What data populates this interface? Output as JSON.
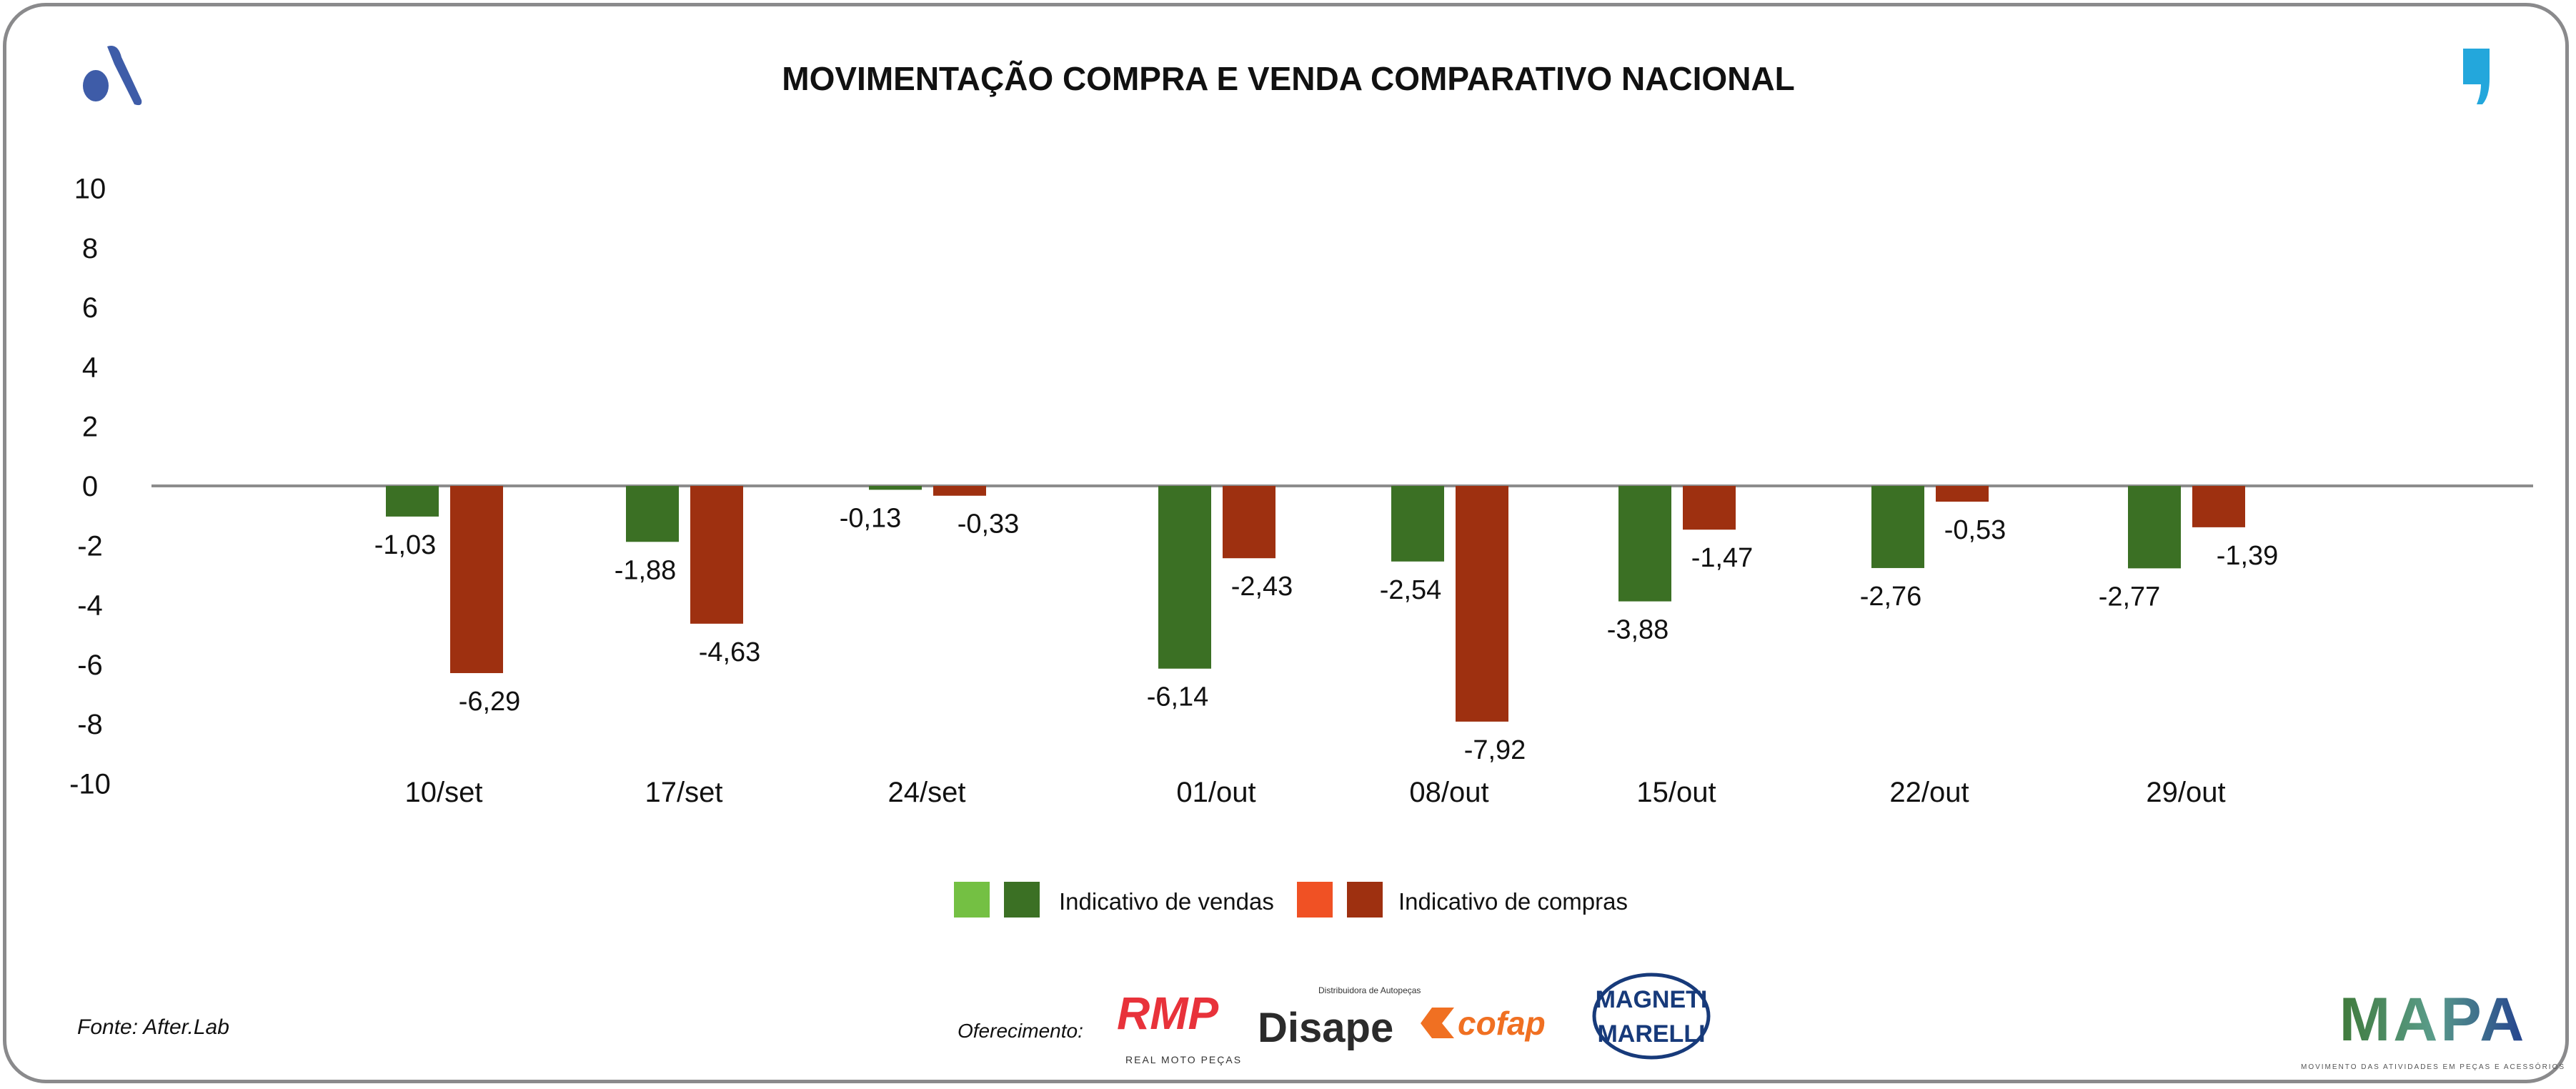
{
  "header": {
    "title": "MOVIMENTAÇÃO COMPRA E VENDA COMPARATIVO NACIONAL"
  },
  "chart_data": {
    "type": "bar",
    "title": "MOVIMENTAÇÃO COMPRA E VENDA COMPARATIVO NACIONAL",
    "categories": [
      "10/set",
      "17/set",
      "24/set",
      "01/out",
      "08/out",
      "15/out",
      "22/out",
      "29/out"
    ],
    "series": [
      {
        "name": "Indicativo de vendas",
        "color": "#3b7024",
        "legend_colors": [
          "#74c043",
          "#3b7024"
        ],
        "values": [
          -1.03,
          -1.88,
          -0.13,
          -6.14,
          -2.54,
          -3.88,
          -2.76,
          -2.77
        ],
        "labels": [
          "-1,03",
          "-1,88",
          "-0,13",
          "-6,14",
          "-2,54",
          "-3,88",
          "-2,76",
          "-2,77"
        ]
      },
      {
        "name": "Indicativo de compras",
        "color": "#9e3010",
        "legend_colors": [
          "#f05124",
          "#9e3010"
        ],
        "values": [
          -6.29,
          -4.63,
          -0.33,
          -2.43,
          -7.92,
          -1.47,
          -0.53,
          -1.39
        ],
        "labels": [
          "-6,29",
          "-4,63",
          "-0,33",
          "-2,43",
          "-7,92",
          "-1,47",
          "-0,53",
          "-1,39"
        ]
      }
    ],
    "ylim": [
      -10,
      10
    ],
    "yticks": [
      "10",
      "8",
      "6",
      "4",
      "2",
      "0",
      "-2",
      "-4",
      "-6",
      "-8",
      "-10"
    ],
    "yticks_values": [
      10,
      8,
      6,
      4,
      2,
      0,
      -2,
      -4,
      -6,
      -8,
      -10
    ],
    "grid": false,
    "legend": "bottom-center",
    "xlabel": "",
    "ylabel": ""
  },
  "footer": {
    "source": "Fonte: After.Lab",
    "sponsor_label": "Oferecimento:",
    "sponsors": [
      "RMP",
      "REAL MOTO PEÇAS",
      "Disape",
      "Distribuidora de Autopeças",
      "cofap",
      "MAGNETI",
      "MARELLI"
    ],
    "brand": "MAPA",
    "brand_tagline": "MOVIMENTO DAS ATIVIDADES EM PEÇAS E ACESSÓRIOS"
  }
}
